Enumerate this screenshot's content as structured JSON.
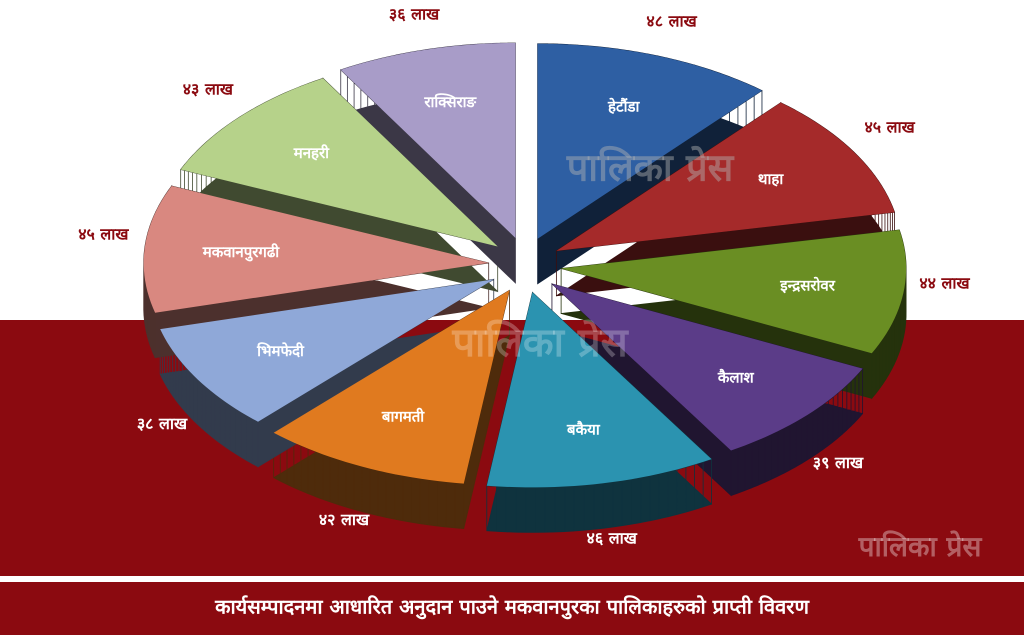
{
  "chart_data": {
    "type": "pie",
    "title": "कार्यसम्पादनमा आधारित अनुदान पाउने मकवानपुरका पालिकाहरुको प्राप्ती विवरण",
    "categories": [
      "हेटौंडा",
      "थाहा",
      "इन्द्रसरोवर",
      "कैलाश",
      "बकैया",
      "बागमती",
      "भिमफेदी",
      "मकवानपुरगढी",
      "मनहरी",
      "राक्सिराङ"
    ],
    "values": [
      48,
      45,
      44,
      39,
      46,
      42,
      38,
      45,
      43,
      36
    ],
    "value_labels": [
      "४८ लाख",
      "४५ लाख",
      "४४ लाख",
      "३९ लाख",
      "४६ लाख",
      "४२ लाख",
      "३८ लाख",
      "४५ लाख",
      "४३ लाख",
      "३६ लाख"
    ],
    "colors": [
      "#2e5fa3",
      "#a52a2a",
      "#6a8e23",
      "#5b3c88",
      "#2b93b0",
      "#e07a1f",
      "#8fa8d8",
      "#d98880",
      "#b6d28a",
      "#a89cc8"
    ]
  },
  "watermark": "पालिका प्रेस"
}
